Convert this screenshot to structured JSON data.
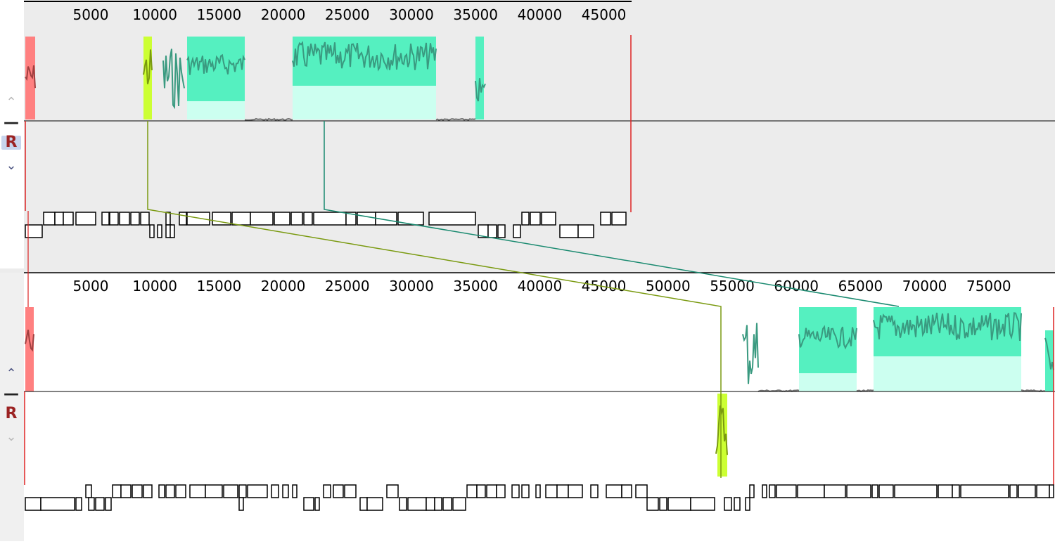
{
  "genomes": [
    {
      "id": "top",
      "ticks": [
        "5000",
        "10000",
        "15000",
        "20000",
        "25000",
        "30000",
        "35000",
        "40000",
        "45000"
      ],
      "controls": {
        "shift_up": "^",
        "minus": "—",
        "reverse": "R",
        "shift_down": "v"
      }
    },
    {
      "id": "bottom",
      "ticks": [
        "5000",
        "10000",
        "15000",
        "20000",
        "25000",
        "30000",
        "35000",
        "40000",
        "45000",
        "50000",
        "55000",
        "60000",
        "65000",
        "70000",
        "75000"
      ],
      "controls": {
        "shift_up": "^",
        "minus": "—",
        "reverse": "R",
        "shift_down": "v"
      }
    }
  ],
  "colors": {
    "background_top": "#ececec",
    "block_red": "#ff8080",
    "block_lime": "#ccff33",
    "block_teal": "#55f0c0",
    "block_teal_light": "#ccfff0",
    "profile_dark": "#3a9a80",
    "profile_gray": "#707070",
    "connector_lime": "#7a9a10",
    "connector_teal": "#1a8a70",
    "end_marker": "#dd2222"
  },
  "icons": [
    "chevron-up-icon",
    "chevron-down-icon",
    "minus-icon",
    "reverse-icon"
  ]
}
